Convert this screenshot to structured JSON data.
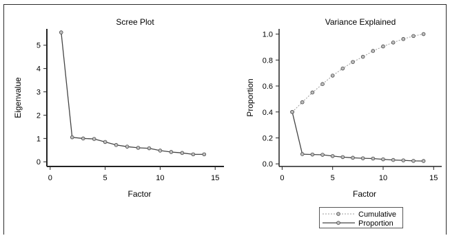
{
  "colors": {
    "border": "#2a2a2a",
    "line": "#444444",
    "cumulative": "#9a9a9a",
    "marker_fill": "#bdbdbd"
  },
  "chart_data": [
    {
      "type": "line",
      "title": "Scree Plot",
      "xlabel": "Factor",
      "ylabel": "Eigenvalue",
      "xlim": [
        -0.3,
        15.8
      ],
      "ylim": [
        -0.2,
        5.7
      ],
      "xticks": [
        0,
        5,
        10,
        15
      ],
      "yticks": [
        0,
        1,
        2,
        3,
        4,
        5
      ],
      "ytick_labels": [
        "0",
        "1",
        "2",
        "3",
        "4",
        "5"
      ],
      "grid": false,
      "series": [
        {
          "x": [
            1,
            2,
            3,
            4,
            5,
            6,
            7,
            8,
            9,
            10,
            11,
            12,
            13,
            14
          ],
          "values": [
            5.55,
            1.05,
            1.0,
            0.98,
            0.85,
            0.72,
            0.65,
            0.6,
            0.58,
            0.48,
            0.42,
            0.38,
            0.32,
            0.32
          ]
        }
      ]
    },
    {
      "type": "line",
      "title": "Variance Explained",
      "xlabel": "Factor",
      "ylabel": "Proportion",
      "xlim": [
        -0.3,
        15.8
      ],
      "ylim": [
        -0.02,
        1.04
      ],
      "xticks": [
        0,
        5,
        10,
        15
      ],
      "yticks": [
        0,
        0.2,
        0.4,
        0.6,
        0.8,
        1.0
      ],
      "ytick_labels": [
        "0.0",
        "0.2",
        "0.4",
        "0.6",
        "0.8",
        "1.0"
      ],
      "grid": false,
      "legend": {
        "position": "bottom",
        "entries": [
          "Cumulative",
          "Proportion"
        ]
      },
      "series": [
        {
          "name": "Cumulative",
          "style": "dotted",
          "x": [
            1,
            2,
            3,
            4,
            5,
            6,
            7,
            8,
            9,
            10,
            11,
            12,
            13,
            14
          ],
          "values": [
            0.4,
            0.475,
            0.55,
            0.615,
            0.68,
            0.735,
            0.785,
            0.825,
            0.87,
            0.905,
            0.935,
            0.962,
            0.985,
            1.0
          ]
        },
        {
          "name": "Proportion",
          "style": "solid",
          "x": [
            1,
            2,
            3,
            4,
            5,
            6,
            7,
            8,
            9,
            10,
            11,
            12,
            13,
            14
          ],
          "values": [
            0.4,
            0.075,
            0.072,
            0.07,
            0.06,
            0.052,
            0.047,
            0.043,
            0.041,
            0.035,
            0.03,
            0.027,
            0.023,
            0.022
          ]
        }
      ]
    }
  ]
}
